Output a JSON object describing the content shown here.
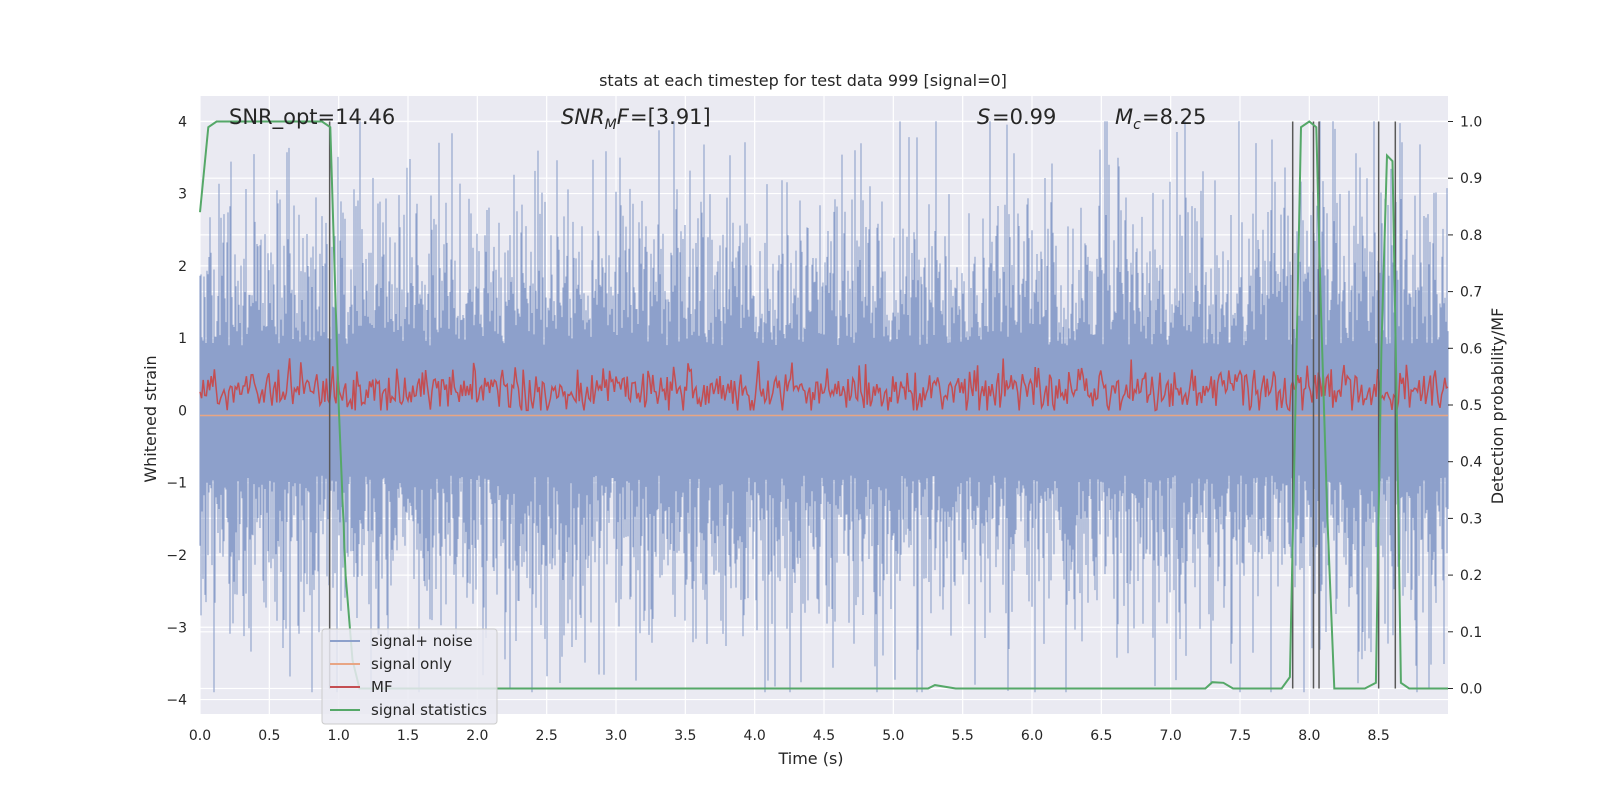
{
  "chart_data": {
    "type": "line",
    "title": "stats at each timestep for test data 999 [signal=0]",
    "xlabel": "Time (s)",
    "ylabel": "Whitened strain",
    "y2label": "Detection probability/MF",
    "xlim": [
      0.0,
      9.0
    ],
    "ylim": [
      -4.2,
      4.35
    ],
    "y2lim": [
      -0.045,
      1.045
    ],
    "xticks": [
      "0.0",
      "0.5",
      "1.0",
      "1.5",
      "2.0",
      "2.5",
      "3.0",
      "3.5",
      "4.0",
      "4.5",
      "5.0",
      "5.5",
      "6.0",
      "6.5",
      "7.0",
      "7.5",
      "8.0",
      "8.5"
    ],
    "yticks": [
      "4",
      "3",
      "2",
      "1",
      "0",
      "−1",
      "−2",
      "−3",
      "−4"
    ],
    "y2ticks": [
      "1.0",
      "0.9",
      "0.8",
      "0.7",
      "0.6",
      "0.5",
      "0.4",
      "0.3",
      "0.2",
      "0.1",
      "0.0"
    ],
    "annotations": {
      "snr_opt": "SNR_opt=14.46",
      "snr_mf": "=[3.91]",
      "s_value": "=0.99",
      "mc_value": "=8.25"
    },
    "legend": {
      "placement": "lower-left",
      "entries": [
        "signal+ noise",
        "signal only",
        "MF",
        "signal statistics"
      ]
    },
    "colors": {
      "signal_noise": "#8da0cb",
      "signal_only": "#e8a584",
      "mf": "#c44e52",
      "signal_statistics": "#55a868",
      "markers": "#595959",
      "background": "#eaeaf2",
      "grid": "#ffffff"
    },
    "markers_x": [
      0.935,
      7.88,
      8.03,
      8.07,
      8.5,
      8.62
    ],
    "series": [
      {
        "name": "signal statistics",
        "axis": "right",
        "x": [
          0.0,
          0.06,
          0.12,
          0.5,
          0.8,
          0.88,
          0.94,
          1.0,
          1.05,
          1.1,
          1.15,
          1.2,
          1.5,
          2.0,
          3.0,
          4.0,
          5.0,
          5.25,
          5.3,
          5.45,
          6.0,
          7.0,
          7.25,
          7.3,
          7.38,
          7.45,
          7.8,
          7.86,
          7.9,
          7.94,
          8.0,
          8.05,
          8.08,
          8.13,
          8.18,
          8.22,
          8.4,
          8.48,
          8.52,
          8.56,
          8.6,
          8.63,
          8.66,
          8.72,
          9.0
        ],
        "y": [
          0.84,
          0.99,
          1.0,
          1.0,
          1.0,
          1.0,
          0.99,
          0.5,
          0.2,
          0.05,
          0.0,
          0.0,
          0.0,
          0.0,
          0.0,
          0.0,
          0.0,
          0.0,
          0.006,
          0.0,
          0.0,
          0.0,
          0.0,
          0.011,
          0.01,
          0.0,
          0.0,
          0.02,
          0.5,
          0.99,
          1.0,
          0.99,
          0.7,
          0.3,
          0.0,
          0.0,
          0.0,
          0.01,
          0.6,
          0.94,
          0.93,
          0.5,
          0.01,
          0.0,
          0.0
        ]
      }
    ]
  }
}
